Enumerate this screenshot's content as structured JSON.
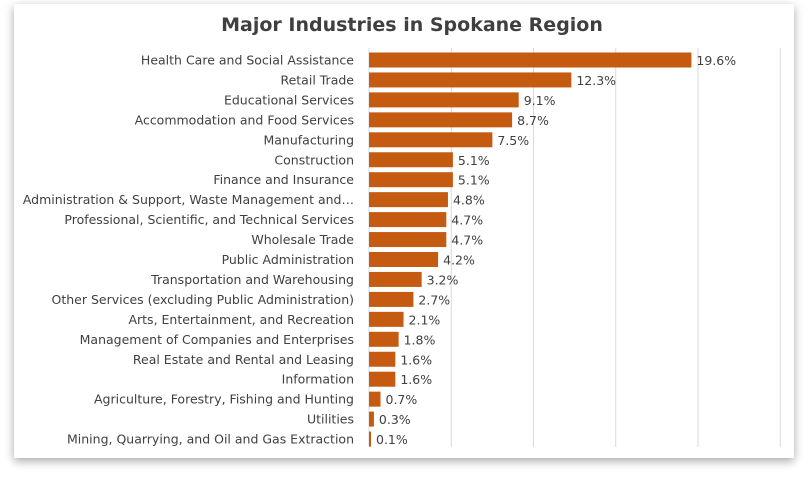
{
  "chart_data": {
    "type": "bar",
    "orientation": "horizontal",
    "title": "Major Industries in Spokane Region",
    "categories": [
      "Health Care and Social Assistance",
      "Retail Trade",
      "Educational Services",
      "Accommodation and Food Services",
      "Manufacturing",
      "Construction",
      "Finance and Insurance",
      "Administration & Support, Waste Management and…",
      "Professional, Scientific, and Technical Services",
      "Wholesale Trade",
      "Public Administration",
      "Transportation and Warehousing",
      "Other Services (excluding Public Administration)",
      "Arts, Entertainment, and Recreation",
      "Management of Companies and Enterprises",
      "Real Estate and Rental and Leasing",
      "Information",
      "Agriculture, Forestry, Fishing and Hunting",
      "Utilities",
      "Mining, Quarrying, and Oil and Gas Extraction"
    ],
    "values": [
      19.6,
      12.3,
      9.1,
      8.7,
      7.5,
      5.1,
      5.1,
      4.8,
      4.7,
      4.7,
      4.2,
      3.2,
      2.7,
      2.1,
      1.8,
      1.6,
      1.6,
      0.7,
      0.3,
      0.1
    ],
    "value_labels": [
      "19.6%",
      "12.3%",
      "9.1%",
      "8.7%",
      "7.5%",
      "5.1%",
      "5.1%",
      "4.8%",
      "4.7%",
      "4.7%",
      "4.2%",
      "3.2%",
      "2.7%",
      "2.1%",
      "1.8%",
      "1.6%",
      "1.6%",
      "0.7%",
      "0.3%",
      "0.1%"
    ],
    "xlim": [
      0,
      25
    ],
    "grid": true,
    "bar_color": "#c55a11"
  }
}
